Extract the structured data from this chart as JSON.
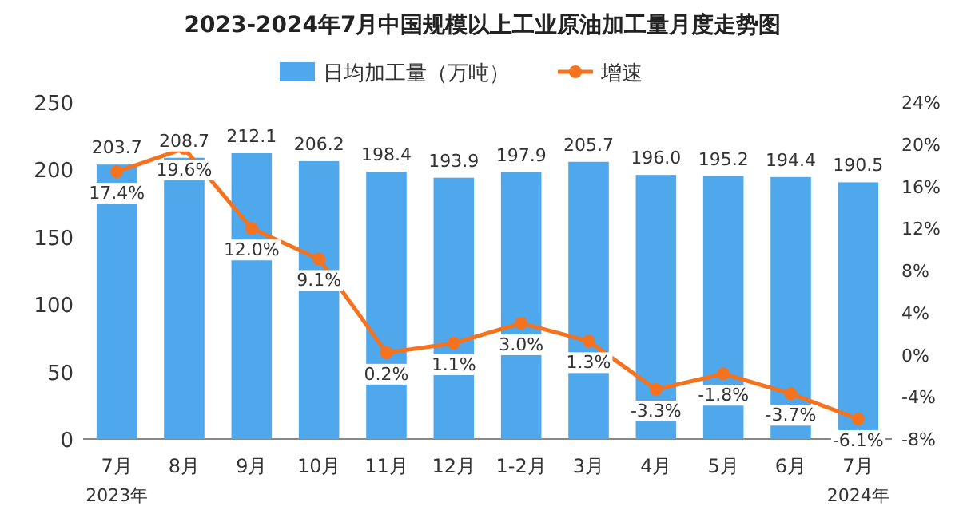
{
  "chart_data": {
    "type": "bar",
    "title": "2023-2024年7月中国规模以上工业原油加工量月度走势图",
    "categories": [
      "7月",
      "8月",
      "9月",
      "10月",
      "11月",
      "12月",
      "1-2月",
      "3月",
      "4月",
      "5月",
      "6月",
      "7月"
    ],
    "series": [
      {
        "name": "日均加工量（万吨）",
        "type": "bar",
        "color": "#4fa8ec",
        "value_labels": [
          "203.7",
          "208.7",
          "212.1",
          "206.2",
          "198.4",
          "193.9",
          "197.9",
          "205.7",
          "196.0",
          "195.2",
          "194.4",
          "190.5"
        ],
        "values": [
          203.7,
          208.7,
          212.1,
          206.2,
          198.4,
          193.9,
          197.9,
          205.7,
          196.0,
          195.2,
          194.4,
          190.5
        ]
      },
      {
        "name": "增速",
        "type": "line",
        "axis": "y2",
        "color": "#f5731f",
        "marker": "circle",
        "values": [
          17.4,
          19.6,
          12.0,
          9.1,
          0.2,
          1.1,
          3.0,
          1.3,
          -3.3,
          -1.8,
          -3.7,
          -6.1
        ],
        "value_labels": [
          "17.4%",
          "19.6%",
          "12.0%",
          "9.1%",
          "0.2%",
          "1.1%",
          "3.0%",
          "1.3%",
          "-3.3%",
          "-1.8%",
          "-3.7%",
          "-6.1%"
        ]
      }
    ],
    "ylim": [
      0,
      250
    ],
    "yticks": [
      0,
      50,
      100,
      150,
      200,
      250
    ],
    "y2lim": [
      -8,
      24
    ],
    "y2ticks": [
      {
        "value": -8,
        "label": "-8%"
      },
      {
        "value": -4,
        "label": "-4%"
      },
      {
        "value": 0,
        "label": "0%"
      },
      {
        "value": 4,
        "label": "4%"
      },
      {
        "value": 8,
        "label": "8%"
      },
      {
        "value": 12,
        "label": "12%"
      },
      {
        "value": 16,
        "label": "16%"
      },
      {
        "value": 20,
        "label": "20%"
      },
      {
        "value": 24,
        "label": "24%"
      }
    ],
    "legend": "top",
    "annotations": [
      "2023年",
      "2024年"
    ]
  }
}
